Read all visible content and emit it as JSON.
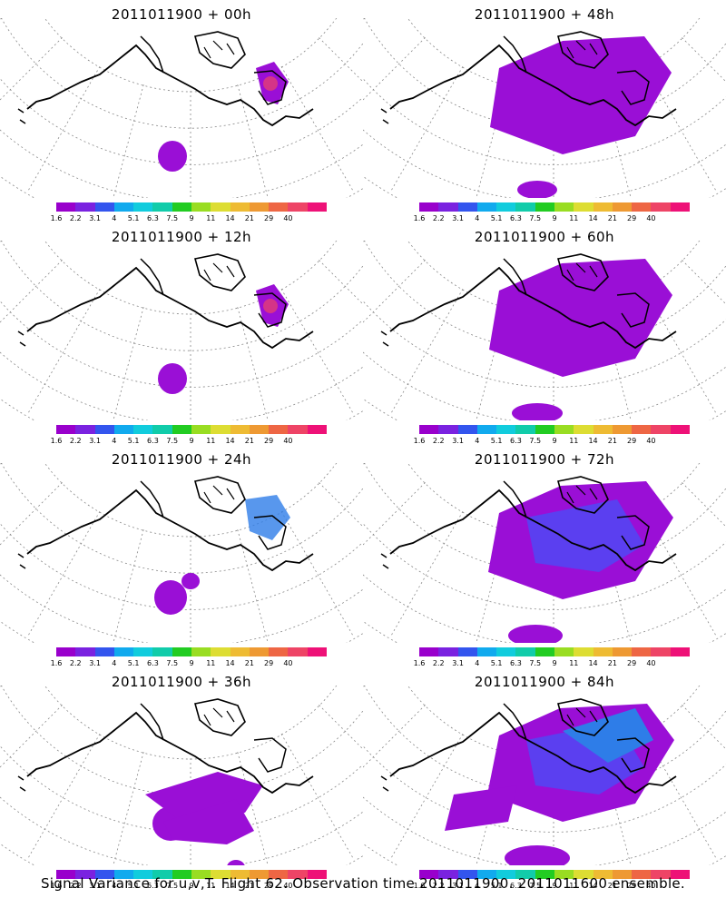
{
  "panels": [
    {
      "title": "2011011900 + 00h",
      "level": 0
    },
    {
      "title": "2011011900 + 48h",
      "level": 3
    },
    {
      "title": "2011011900 + 12h",
      "level": 0
    },
    {
      "title": "2011011900 + 60h",
      "level": 4
    },
    {
      "title": "2011011900 + 24h",
      "level": 1
    },
    {
      "title": "2011011900 + 72h",
      "level": 5
    },
    {
      "title": "2011011900 + 36h",
      "level": 2
    },
    {
      "title": "2011011900 + 84h",
      "level": 6
    }
  ],
  "colorbar": {
    "ticks": [
      "1.6",
      "2.2",
      "3.1",
      "4",
      "5.1",
      "6.3",
      "7.5",
      "9",
      "11",
      "14",
      "21",
      "29",
      "40"
    ],
    "colors": [
      "#9900cc",
      "#7a22e0",
      "#3355ee",
      "#11aaee",
      "#11ccdd",
      "#11ccaa",
      "#22cc22",
      "#99dd22",
      "#dddd33",
      "#eebb33",
      "#ee9933",
      "#ee6644",
      "#ee4466",
      "#ee1177"
    ]
  },
  "caption": "Signal Variance for u,v,T. Flight 62. Observation time 2011011900. 2011011600 ensemble."
}
